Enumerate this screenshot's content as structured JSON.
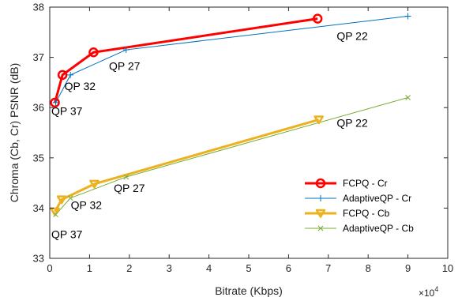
{
  "chart_data": {
    "type": "line",
    "xlabel": "Bitrate (Kbps)",
    "ylabel": "Chroma (Cb, Cr) PSNR (dB)",
    "x_multiplier_label": "×10",
    "x_multiplier_exponent": "4",
    "xlim": [
      0,
      100000
    ],
    "ylim": [
      33,
      38
    ],
    "x_ticks": [
      0,
      10000,
      20000,
      30000,
      40000,
      50000,
      60000,
      70000,
      80000,
      90000,
      100000
    ],
    "x_tick_labels": [
      "0",
      "1",
      "2",
      "3",
      "4",
      "5",
      "6",
      "7",
      "8",
      "9",
      "10"
    ],
    "y_ticks": [
      33,
      34,
      35,
      36,
      37,
      38
    ],
    "y_tick_labels": [
      "33",
      "34",
      "35",
      "36",
      "37",
      "38"
    ],
    "legend_position": "right, lower-middle",
    "grid": false,
    "series": [
      {
        "name": "FCPQ - Cr",
        "color": "#ff0000",
        "marker": "circle",
        "line_width": "thick",
        "x": [
          1300,
          3200,
          11000,
          67300
        ],
        "y": [
          36.1,
          36.65,
          37.1,
          37.77
        ]
      },
      {
        "name": "AdaptiveQP - Cr",
        "color": "#0072bd",
        "marker": "plus",
        "line_width": "thin",
        "x": [
          1500,
          5200,
          19200,
          90000
        ],
        "y": [
          36.1,
          36.65,
          37.15,
          37.82
        ]
      },
      {
        "name": "FCPQ - Cb",
        "color": "#edb120",
        "marker": "triangle-down",
        "line_width": "thick",
        "x": [
          1300,
          3000,
          11200,
          67600
        ],
        "y": [
          33.93,
          34.17,
          34.48,
          35.76
        ]
      },
      {
        "name": "AdaptiveQP - Cb",
        "color": "#77ac30",
        "marker": "x",
        "line_width": "thin",
        "x": [
          1500,
          5200,
          19200,
          90000
        ],
        "y": [
          33.87,
          34.2,
          34.62,
          36.2
        ]
      }
    ],
    "annotations": [
      {
        "text": "QP 22",
        "x": 76000,
        "y": 37.35
      },
      {
        "text": "QP 27",
        "x": 18800,
        "y": 36.75
      },
      {
        "text": "QP 32",
        "x": 7600,
        "y": 36.35
      },
      {
        "text": "QP 37",
        "x": 4300,
        "y": 35.85
      },
      {
        "text": "QP 22",
        "x": 76000,
        "y": 35.62
      },
      {
        "text": "QP 27",
        "x": 20000,
        "y": 34.32
      },
      {
        "text": "QP 32",
        "x": 9200,
        "y": 33.98
      },
      {
        "text": "QP 37",
        "x": 4300,
        "y": 33.4
      }
    ]
  }
}
